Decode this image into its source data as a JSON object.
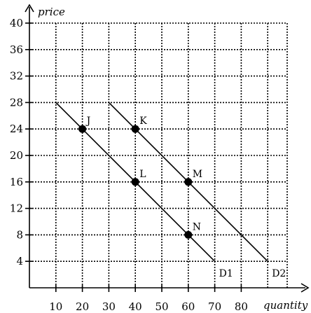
{
  "chart_data": {
    "type": "line",
    "title": "",
    "xlabel": "quantity",
    "ylabel": "price",
    "xlim": [
      0,
      100
    ],
    "ylim": [
      0,
      40
    ],
    "x_ticks": [
      10,
      20,
      30,
      40,
      50,
      60,
      70,
      80
    ],
    "x_tick_labels": [
      "10",
      "20",
      "30",
      "40",
      "50",
      "60",
      "70",
      "80"
    ],
    "y_ticks": [
      4,
      8,
      12,
      16,
      20,
      24,
      28,
      32,
      36,
      40
    ],
    "y_tick_labels": [
      "4",
      "8",
      "12",
      "16",
      "20",
      "24",
      "28",
      "32",
      "36",
      "40"
    ],
    "grid": true,
    "series": [
      {
        "name": "D1",
        "points": [
          [
            10,
            28
          ],
          [
            70,
            4
          ]
        ]
      },
      {
        "name": "D2",
        "points": [
          [
            30,
            28
          ],
          [
            90,
            4
          ]
        ]
      }
    ],
    "points": [
      {
        "label": "J",
        "x": 20,
        "y": 24
      },
      {
        "label": "K",
        "x": 40,
        "y": 24
      },
      {
        "label": "L",
        "x": 40,
        "y": 16
      },
      {
        "label": "M",
        "x": 60,
        "y": 16
      },
      {
        "label": "N",
        "x": 60,
        "y": 8
      }
    ]
  },
  "colors": {
    "axis": "#000000",
    "grid": "#000000",
    "line": "#000000",
    "point": "#000000",
    "background": "#ffffff"
  }
}
